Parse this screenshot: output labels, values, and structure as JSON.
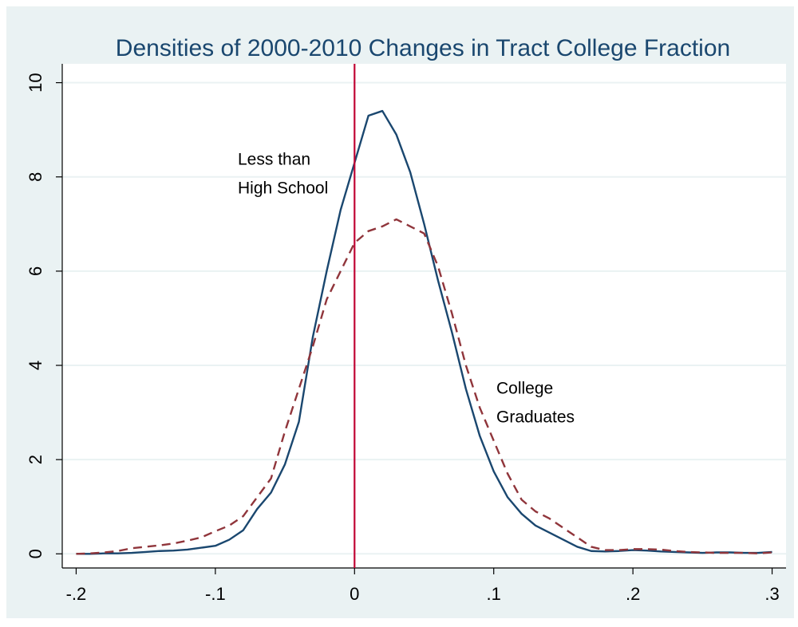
{
  "chart_data": {
    "type": "line",
    "title": "Densities of 2000-2010 Changes in Tract College Fraction",
    "x": [
      -0.2,
      -0.19,
      -0.18,
      -0.17,
      -0.16,
      -0.15,
      -0.14,
      -0.13,
      -0.12,
      -0.11,
      -0.1,
      -0.09,
      -0.08,
      -0.07,
      -0.06,
      -0.05,
      -0.04,
      -0.03,
      -0.02,
      -0.01,
      0,
      0.01,
      0.02,
      0.03,
      0.04,
      0.05,
      0.06,
      0.07,
      0.08,
      0.09,
      0.1,
      0.11,
      0.12,
      0.13,
      0.14,
      0.15,
      0.16,
      0.17,
      0.18,
      0.19,
      0.2,
      0.21,
      0.22,
      0.23,
      0.24,
      0.25,
      0.26,
      0.27,
      0.28,
      0.29,
      0.3
    ],
    "series": [
      {
        "color": "#1a476f",
        "dash": false,
        "values": [
          0,
          0,
          0.01,
          0.01,
          0.02,
          0.04,
          0.06,
          0.07,
          0.09,
          0.13,
          0.17,
          0.3,
          0.5,
          0.95,
          1.3,
          1.9,
          2.8,
          4.6,
          6.0,
          7.3,
          8.3,
          9.3,
          9.4,
          8.9,
          8.1,
          7.0,
          5.8,
          4.7,
          3.5,
          2.5,
          1.75,
          1.2,
          0.85,
          0.6,
          0.45,
          0.3,
          0.15,
          0.06,
          0.05,
          0.06,
          0.08,
          0.07,
          0.05,
          0.04,
          0.03,
          0.02,
          0.03,
          0.03,
          0.02,
          0.02,
          0.04
        ]
      },
      {
        "color": "#90353b",
        "dash": true,
        "values": [
          0,
          0.01,
          0.03,
          0.06,
          0.12,
          0.15,
          0.18,
          0.22,
          0.28,
          0.35,
          0.48,
          0.6,
          0.8,
          1.2,
          1.6,
          2.6,
          3.5,
          4.4,
          5.4,
          6.0,
          6.6,
          6.85,
          6.95,
          7.1,
          6.95,
          6.8,
          6.1,
          5.1,
          4.0,
          3.1,
          2.4,
          1.7,
          1.15,
          0.9,
          0.75,
          0.55,
          0.35,
          0.15,
          0.08,
          0.08,
          0.1,
          0.1,
          0.09,
          0.06,
          0.04,
          0.03,
          0.02,
          0.02,
          0.02,
          0.01,
          0.03
        ]
      }
    ],
    "xlim": [
      -0.21,
      0.31
    ],
    "ylim": [
      -0.3,
      10.4
    ],
    "xticks": [
      {
        "value": -0.2,
        "label": "-.2"
      },
      {
        "value": -0.1,
        "label": "-.1"
      },
      0,
      {
        "value": 0.1,
        "label": ".1"
      },
      {
        "value": 0.2,
        "label": ".2"
      },
      {
        "value": 0.3,
        "label": ".3"
      }
    ],
    "yticks": [
      0,
      2,
      4,
      6,
      8,
      10
    ],
    "grid": true,
    "xline": {
      "value": 0,
      "color": "#c10534"
    },
    "annotations": [
      {
        "lines": [
          "Less than",
          "High School"
        ]
      },
      {
        "lines": [
          "College",
          "Graduates"
        ]
      }
    ]
  }
}
